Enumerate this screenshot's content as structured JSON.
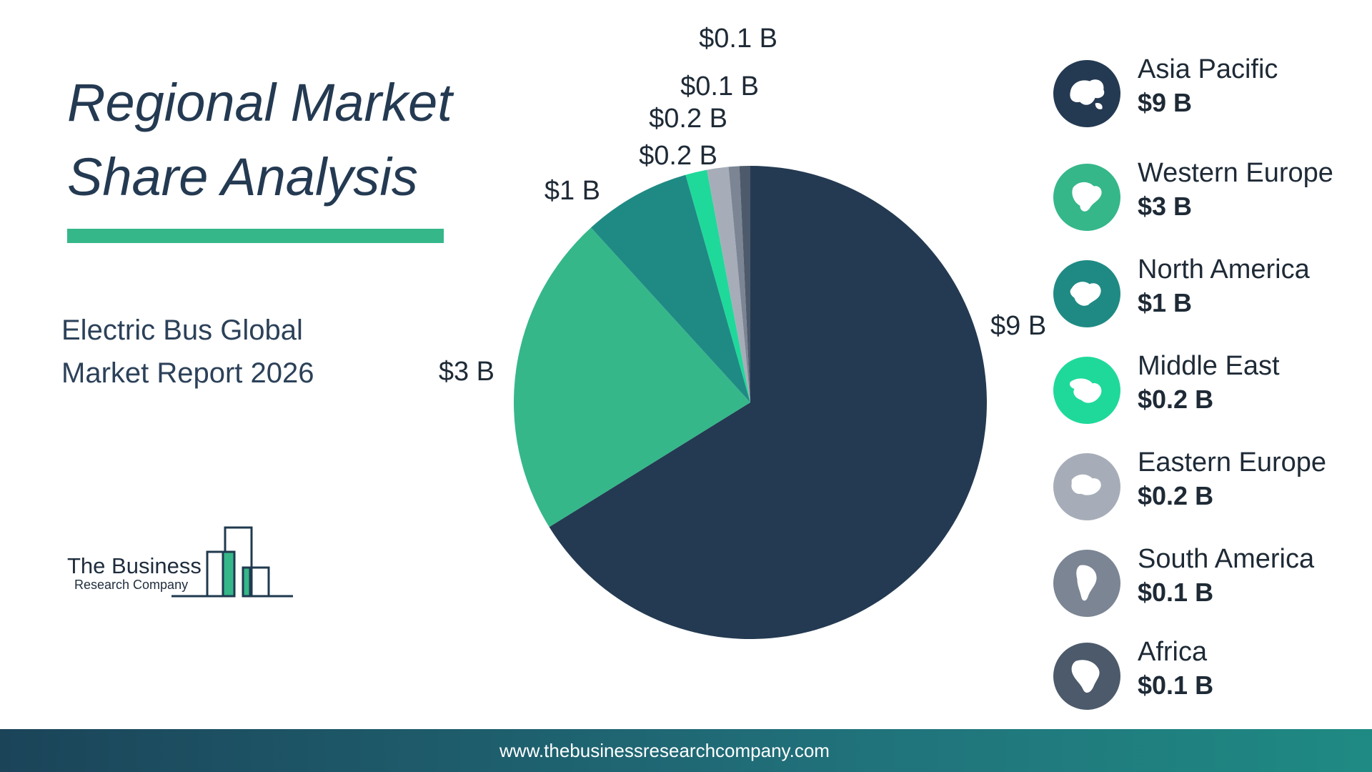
{
  "header": {
    "title_line1": "Regional Market",
    "title_line2": "Share Analysis",
    "subtitle_line1": "Electric Bus Global",
    "subtitle_line2": "Market Report 2026"
  },
  "logo": {
    "line1": "The Business",
    "line2": "Research Company"
  },
  "footer": {
    "url": "www.thebusinessresearchcompany.com"
  },
  "chart_data": {
    "type": "pie",
    "title": "",
    "slices": [
      {
        "name": "Asia Pacific",
        "value": 9,
        "label": "$9 B",
        "value_label": "$9 B",
        "color": "#243a52",
        "icon": "asia-pacific-map-icon"
      },
      {
        "name": "Western Europe",
        "value": 3,
        "label": "$3 B",
        "value_label": "$3 B",
        "color": "#35b78a",
        "icon": "western-europe-map-icon"
      },
      {
        "name": "North America",
        "value": 1,
        "label": "$1 B",
        "value_label": "$1 B",
        "color": "#1f8a84",
        "icon": "north-america-map-icon"
      },
      {
        "name": "Middle East",
        "value": 0.2,
        "label": "$0.2 B",
        "value_label": "$0.2 B",
        "color": "#1fd99a",
        "icon": "middle-east-map-icon"
      },
      {
        "name": "Eastern Europe",
        "value": 0.2,
        "label": "$0.2 B",
        "value_label": "$0.2 B",
        "color": "#a7adb8",
        "icon": "eastern-europe-map-icon"
      },
      {
        "name": "South America",
        "value": 0.1,
        "label": "$0.1 B",
        "value_label": "$0.1 B",
        "color": "#7b8594",
        "icon": "south-america-map-icon"
      },
      {
        "name": "Africa",
        "value": 0.1,
        "label": "$0.1 B",
        "value_label": "$0.1 B",
        "color": "#4c5a6b",
        "icon": "africa-map-icon"
      }
    ],
    "legend_placement": "right"
  }
}
